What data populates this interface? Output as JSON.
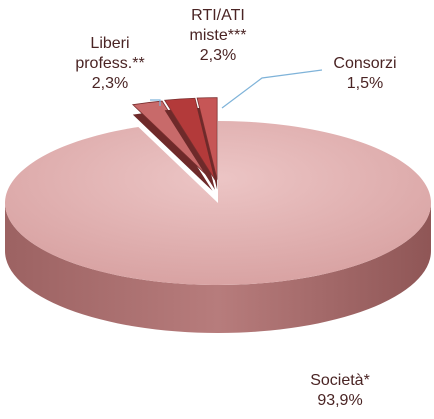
{
  "chart_data": {
    "type": "pie",
    "categories": [
      "Società*",
      "Liberi profess.**",
      "RTI/ATI miste***",
      "Consorzi"
    ],
    "values": [
      93.9,
      2.3,
      2.3,
      1.5
    ],
    "value_labels": [
      "93,9%",
      "2,3%",
      "2,3%",
      "1,5%"
    ],
    "colors": [
      "#e3b1b1",
      "#c86a6a",
      "#b33a3a",
      "#c65656"
    ]
  }
}
